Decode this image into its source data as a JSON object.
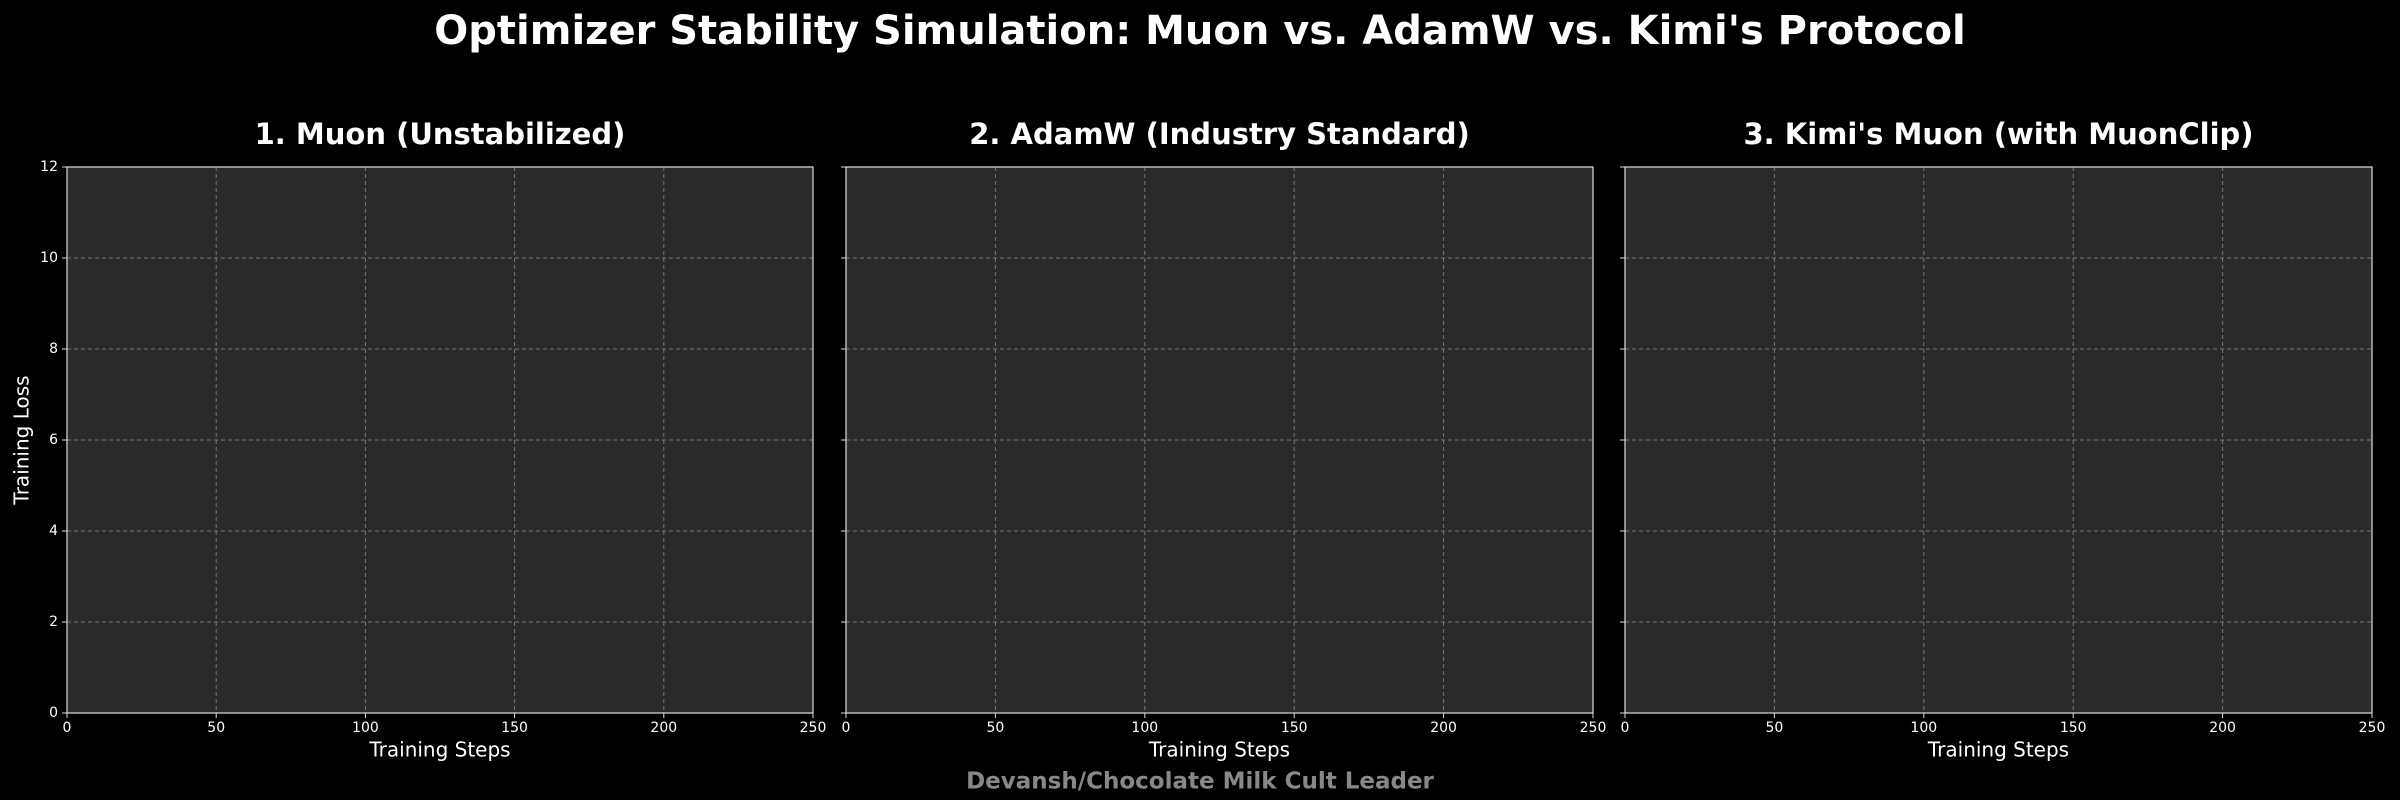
{
  "title": "Optimizer Stability Simulation: Muon vs. AdamW vs. Kimi's Protocol",
  "footer": "Devansh/Chocolate Milk Cult Leader",
  "chart_data": [
    {
      "type": "line",
      "title": "1. Muon (Unstabilized)",
      "xlabel": "Training Steps",
      "ylabel": "Training Loss",
      "xlim": [
        0,
        250
      ],
      "ylim": [
        0,
        12
      ],
      "xticks": [
        0,
        50,
        100,
        150,
        200,
        250
      ],
      "yticks": [
        0,
        2,
        4,
        6,
        8,
        10,
        12
      ],
      "grid": true,
      "series": []
    },
    {
      "type": "line",
      "title": "2. AdamW (Industry Standard)",
      "xlabel": "Training Steps",
      "xlim": [
        0,
        250
      ],
      "ylim": [
        0,
        12
      ],
      "xticks": [
        0,
        50,
        100,
        150,
        200,
        250
      ],
      "yticks": [
        0,
        2,
        4,
        6,
        8,
        10,
        12
      ],
      "grid": true,
      "series": []
    },
    {
      "type": "line",
      "title": "3. Kimi's Muon (with MuonClip)",
      "xlabel": "Training Steps",
      "xlim": [
        0,
        250
      ],
      "ylim": [
        0,
        12
      ],
      "xticks": [
        0,
        50,
        100,
        150,
        200,
        250
      ],
      "yticks": [
        0,
        2,
        4,
        6,
        8,
        10,
        12
      ],
      "grid": true,
      "series": []
    }
  ]
}
